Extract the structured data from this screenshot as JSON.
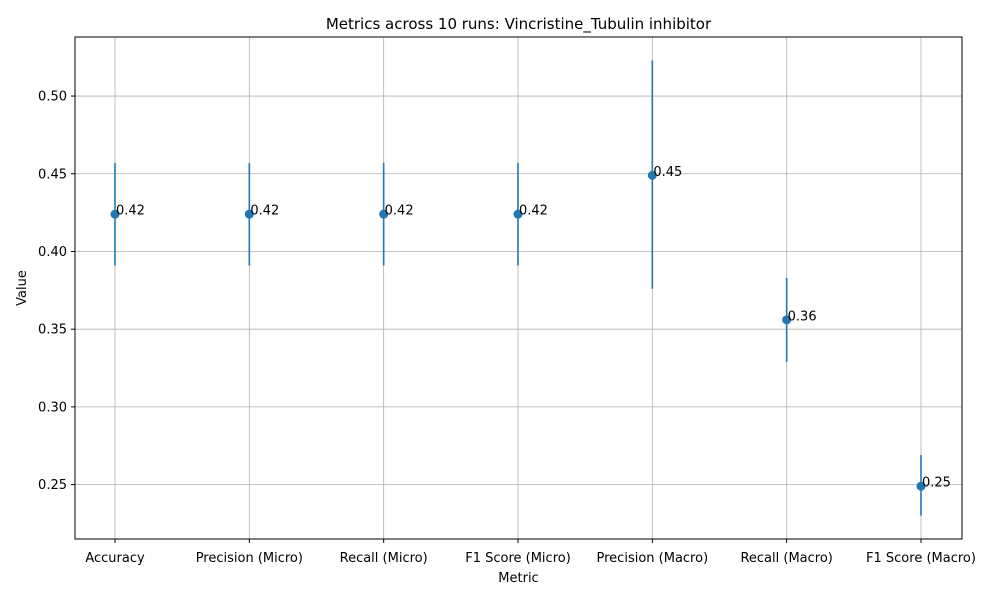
{
  "chart_data": {
    "type": "scatter",
    "title": "Metrics across 10 runs: Vincristine_Tubulin inhibitor",
    "xlabel": "Metric",
    "ylabel": "Value",
    "categories": [
      "Accuracy",
      "Precision (Micro)",
      "Recall (Micro)",
      "F1 Score (Micro)",
      "Precision (Macro)",
      "Recall (Macro)",
      "F1 Score (Macro)"
    ],
    "values": [
      0.424,
      0.424,
      0.424,
      0.424,
      0.449,
      0.356,
      0.249
    ],
    "error_low": [
      0.391,
      0.391,
      0.391,
      0.391,
      0.376,
      0.329,
      0.23
    ],
    "error_high": [
      0.457,
      0.457,
      0.457,
      0.457,
      0.523,
      0.383,
      0.269
    ],
    "data_labels": [
      "0.42",
      "0.42",
      "0.42",
      "0.42",
      "0.45",
      "0.36",
      "0.25"
    ],
    "ylim": [
      0.215,
      0.538
    ],
    "yticks": [
      0.25,
      0.3,
      0.35,
      0.4,
      0.45,
      0.5
    ],
    "ytick_labels": [
      "0.25",
      "0.30",
      "0.35",
      "0.40",
      "0.45",
      "0.50"
    ],
    "grid": true,
    "colors": {
      "marker": "#1f77b4",
      "grid": "#b0b0b0",
      "axis": "#000000"
    }
  }
}
